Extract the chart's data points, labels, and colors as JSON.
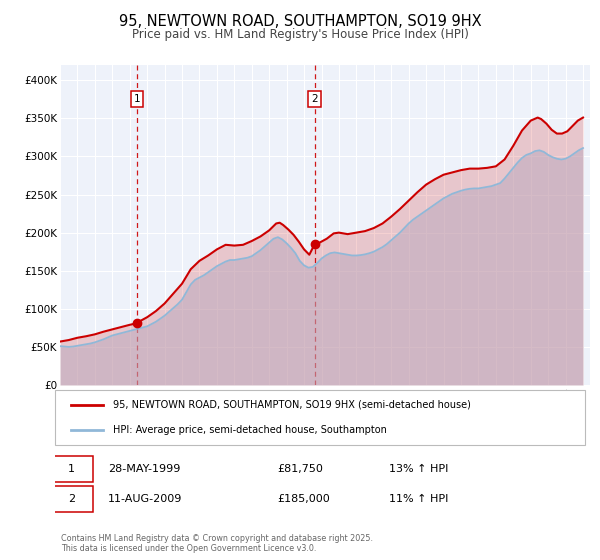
{
  "title": "95, NEWTOWN ROAD, SOUTHAMPTON, SO19 9HX",
  "subtitle": "Price paid vs. HM Land Registry's House Price Index (HPI)",
  "title_fontsize": 10.5,
  "subtitle_fontsize": 8.5,
  "ylim": [
    0,
    420000
  ],
  "yticks": [
    0,
    50000,
    100000,
    150000,
    200000,
    250000,
    300000,
    350000,
    400000
  ],
  "ytick_labels": [
    "£0",
    "£50K",
    "£100K",
    "£150K",
    "£200K",
    "£250K",
    "£300K",
    "£350K",
    "£400K"
  ],
  "background_color": "#ffffff",
  "plot_bg_color": "#eef2fa",
  "grid_color": "#ffffff",
  "line1_color": "#cc0000",
  "line2_color": "#90b8d8",
  "line1_fill_color": "#cc0000",
  "line2_fill_color": "#b8d0e8",
  "marker_color": "#cc0000",
  "vline_color": "#cc0000",
  "legend_label1": "95, NEWTOWN ROAD, SOUTHAMPTON, SO19 9HX (semi-detached house)",
  "legend_label2": "HPI: Average price, semi-detached house, Southampton",
  "annotation1": {
    "date": "28-MAY-1999",
    "price": "£81,750",
    "hpi": "13% ↑ HPI"
  },
  "annotation2": {
    "date": "11-AUG-2009",
    "price": "£185,000",
    "hpi": "11% ↑ HPI"
  },
  "footnote": "Contains HM Land Registry data © Crown copyright and database right 2025.\nThis data is licensed under the Open Government Licence v3.0.",
  "hpi_data": [
    [
      1995.0,
      51000
    ],
    [
      1995.25,
      50500
    ],
    [
      1995.5,
      50000
    ],
    [
      1995.75,
      50500
    ],
    [
      1996.0,
      51500
    ],
    [
      1996.25,
      52500
    ],
    [
      1996.5,
      53500
    ],
    [
      1996.75,
      54500
    ],
    [
      1997.0,
      56000
    ],
    [
      1997.25,
      58000
    ],
    [
      1997.5,
      60000
    ],
    [
      1997.75,
      62500
    ],
    [
      1998.0,
      65000
    ],
    [
      1998.25,
      66500
    ],
    [
      1998.5,
      68000
    ],
    [
      1998.75,
      69500
    ],
    [
      1999.0,
      71000
    ],
    [
      1999.25,
      72500
    ],
    [
      1999.5,
      74000
    ],
    [
      1999.75,
      75500
    ],
    [
      2000.0,
      77000
    ],
    [
      2000.25,
      80000
    ],
    [
      2000.5,
      83000
    ],
    [
      2000.75,
      87000
    ],
    [
      2001.0,
      91000
    ],
    [
      2001.25,
      96000
    ],
    [
      2001.5,
      101000
    ],
    [
      2001.75,
      106000
    ],
    [
      2002.0,
      112000
    ],
    [
      2002.25,
      122000
    ],
    [
      2002.5,
      132000
    ],
    [
      2002.75,
      138000
    ],
    [
      2003.0,
      141000
    ],
    [
      2003.25,
      144000
    ],
    [
      2003.5,
      148000
    ],
    [
      2003.75,
      152000
    ],
    [
      2004.0,
      156000
    ],
    [
      2004.25,
      159000
    ],
    [
      2004.5,
      162000
    ],
    [
      2004.75,
      164000
    ],
    [
      2005.0,
      164000
    ],
    [
      2005.25,
      165000
    ],
    [
      2005.5,
      166000
    ],
    [
      2005.75,
      167000
    ],
    [
      2006.0,
      169000
    ],
    [
      2006.25,
      173000
    ],
    [
      2006.5,
      177000
    ],
    [
      2006.75,
      182000
    ],
    [
      2007.0,
      187000
    ],
    [
      2007.25,
      192000
    ],
    [
      2007.5,
      194000
    ],
    [
      2007.75,
      191000
    ],
    [
      2008.0,
      186000
    ],
    [
      2008.25,
      180000
    ],
    [
      2008.5,
      173000
    ],
    [
      2008.75,
      163000
    ],
    [
      2009.0,
      157000
    ],
    [
      2009.25,
      154000
    ],
    [
      2009.5,
      155000
    ],
    [
      2009.75,
      160000
    ],
    [
      2010.0,
      166000
    ],
    [
      2010.25,
      170000
    ],
    [
      2010.5,
      173000
    ],
    [
      2010.75,
      174000
    ],
    [
      2011.0,
      173000
    ],
    [
      2011.25,
      172000
    ],
    [
      2011.5,
      171000
    ],
    [
      2011.75,
      170000
    ],
    [
      2012.0,
      170000
    ],
    [
      2012.25,
      170500
    ],
    [
      2012.5,
      171500
    ],
    [
      2012.75,
      173000
    ],
    [
      2013.0,
      175000
    ],
    [
      2013.25,
      178000
    ],
    [
      2013.5,
      181000
    ],
    [
      2013.75,
      185000
    ],
    [
      2014.0,
      190000
    ],
    [
      2014.25,
      195000
    ],
    [
      2014.5,
      200000
    ],
    [
      2014.75,
      206000
    ],
    [
      2015.0,
      212000
    ],
    [
      2015.25,
      217000
    ],
    [
      2015.5,
      221000
    ],
    [
      2015.75,
      225000
    ],
    [
      2016.0,
      229000
    ],
    [
      2016.25,
      233000
    ],
    [
      2016.5,
      237000
    ],
    [
      2016.75,
      241000
    ],
    [
      2017.0,
      245000
    ],
    [
      2017.25,
      248000
    ],
    [
      2017.5,
      251000
    ],
    [
      2017.75,
      253000
    ],
    [
      2018.0,
      255000
    ],
    [
      2018.25,
      256500
    ],
    [
      2018.5,
      257500
    ],
    [
      2018.75,
      258000
    ],
    [
      2019.0,
      258000
    ],
    [
      2019.25,
      259000
    ],
    [
      2019.5,
      260000
    ],
    [
      2019.75,
      261000
    ],
    [
      2020.0,
      263000
    ],
    [
      2020.25,
      265000
    ],
    [
      2020.5,
      271000
    ],
    [
      2020.75,
      278000
    ],
    [
      2021.0,
      285000
    ],
    [
      2021.25,
      292000
    ],
    [
      2021.5,
      298000
    ],
    [
      2021.75,
      302000
    ],
    [
      2022.0,
      304000
    ],
    [
      2022.25,
      307000
    ],
    [
      2022.5,
      308000
    ],
    [
      2022.75,
      306000
    ],
    [
      2023.0,
      302000
    ],
    [
      2023.25,
      299000
    ],
    [
      2023.5,
      297000
    ],
    [
      2023.75,
      296000
    ],
    [
      2024.0,
      297000
    ],
    [
      2024.25,
      300000
    ],
    [
      2024.5,
      304000
    ],
    [
      2024.75,
      308000
    ],
    [
      2025.0,
      311000
    ]
  ],
  "price_data": [
    [
      1995.0,
      57000
    ],
    [
      1995.5,
      59000
    ],
    [
      1996.0,
      62000
    ],
    [
      1996.5,
      64000
    ],
    [
      1997.0,
      66500
    ],
    [
      1997.5,
      70000
    ],
    [
      1998.0,
      73000
    ],
    [
      1998.5,
      76000
    ],
    [
      1999.0,
      79000
    ],
    [
      1999.3,
      80500
    ],
    [
      1999.41,
      81750
    ],
    [
      1999.6,
      84000
    ],
    [
      2000.0,
      89000
    ],
    [
      2000.5,
      97000
    ],
    [
      2001.0,
      107000
    ],
    [
      2001.5,
      120000
    ],
    [
      2002.0,
      133000
    ],
    [
      2002.5,
      152000
    ],
    [
      2003.0,
      163000
    ],
    [
      2003.5,
      170000
    ],
    [
      2004.0,
      178000
    ],
    [
      2004.5,
      184000
    ],
    [
      2005.0,
      183000
    ],
    [
      2005.5,
      184000
    ],
    [
      2006.0,
      189000
    ],
    [
      2006.5,
      195000
    ],
    [
      2007.0,
      203000
    ],
    [
      2007.4,
      212000
    ],
    [
      2007.6,
      213000
    ],
    [
      2007.8,
      210000
    ],
    [
      2008.1,
      204000
    ],
    [
      2008.4,
      197000
    ],
    [
      2008.7,
      188000
    ],
    [
      2009.0,
      178000
    ],
    [
      2009.3,
      171000
    ],
    [
      2009.61,
      185000
    ],
    [
      2009.9,
      187000
    ],
    [
      2010.3,
      192000
    ],
    [
      2010.7,
      199000
    ],
    [
      2011.0,
      200000
    ],
    [
      2011.5,
      198000
    ],
    [
      2012.0,
      200000
    ],
    [
      2012.5,
      202000
    ],
    [
      2013.0,
      206000
    ],
    [
      2013.5,
      212000
    ],
    [
      2014.0,
      221000
    ],
    [
      2014.5,
      231000
    ],
    [
      2015.0,
      242000
    ],
    [
      2015.5,
      253000
    ],
    [
      2016.0,
      263000
    ],
    [
      2016.5,
      270000
    ],
    [
      2017.0,
      276000
    ],
    [
      2017.5,
      279000
    ],
    [
      2018.0,
      282000
    ],
    [
      2018.5,
      284000
    ],
    [
      2019.0,
      284000
    ],
    [
      2019.5,
      285000
    ],
    [
      2020.0,
      287000
    ],
    [
      2020.5,
      296000
    ],
    [
      2021.0,
      314000
    ],
    [
      2021.5,
      334000
    ],
    [
      2022.0,
      347000
    ],
    [
      2022.4,
      351000
    ],
    [
      2022.6,
      349000
    ],
    [
      2022.9,
      343000
    ],
    [
      2023.2,
      335000
    ],
    [
      2023.5,
      330000
    ],
    [
      2023.8,
      330000
    ],
    [
      2024.1,
      333000
    ],
    [
      2024.4,
      340000
    ],
    [
      2024.7,
      347000
    ],
    [
      2025.0,
      351000
    ]
  ],
  "sale1_x": 1999.41,
  "sale1_y": 81750,
  "sale2_x": 2009.61,
  "sale2_y": 185000,
  "xmin": 1995.0,
  "xmax": 2025.4
}
